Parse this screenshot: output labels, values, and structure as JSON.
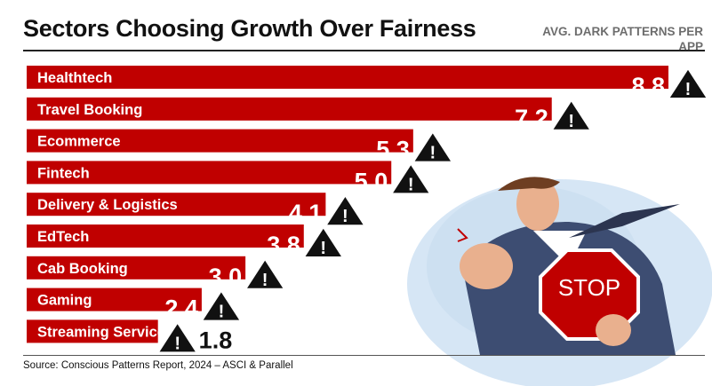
{
  "title": "Sectors Choosing Growth Over Fairness",
  "unit_label": "AVG. DARK PATTERNS PER APP",
  "source": "Source: Conscious Patterns Report, 2024 – ASCI & Parallel",
  "colors": {
    "bar": "#c00000",
    "text_on_bar": "#ffffff",
    "value_text": "#111111",
    "warning": "#111111"
  },
  "illustration": {
    "sign_text": "STOP"
  },
  "chart_data": {
    "type": "bar",
    "orientation": "horizontal",
    "title": "Sectors Choosing Growth Over Fairness",
    "categories": [
      "Healthtech",
      "Travel Booking",
      "Ecommerce",
      "Fintech",
      "Delivery & Logistics",
      "EdTech",
      "Cab Booking",
      "Gaming",
      "Streaming Services"
    ],
    "values": [
      8.8,
      7.2,
      5.3,
      5.0,
      4.1,
      3.8,
      3.0,
      2.4,
      1.8
    ],
    "value_labels": [
      "8.8",
      "7.2",
      "5.3",
      "5.0",
      "4.1",
      "3.8",
      "3.0",
      "2.4",
      "1.8"
    ],
    "ylabel": "AVG. DARK PATTERNS PER APP",
    "xlim": [
      0,
      8.8
    ],
    "grid": false,
    "legend": "none"
  }
}
